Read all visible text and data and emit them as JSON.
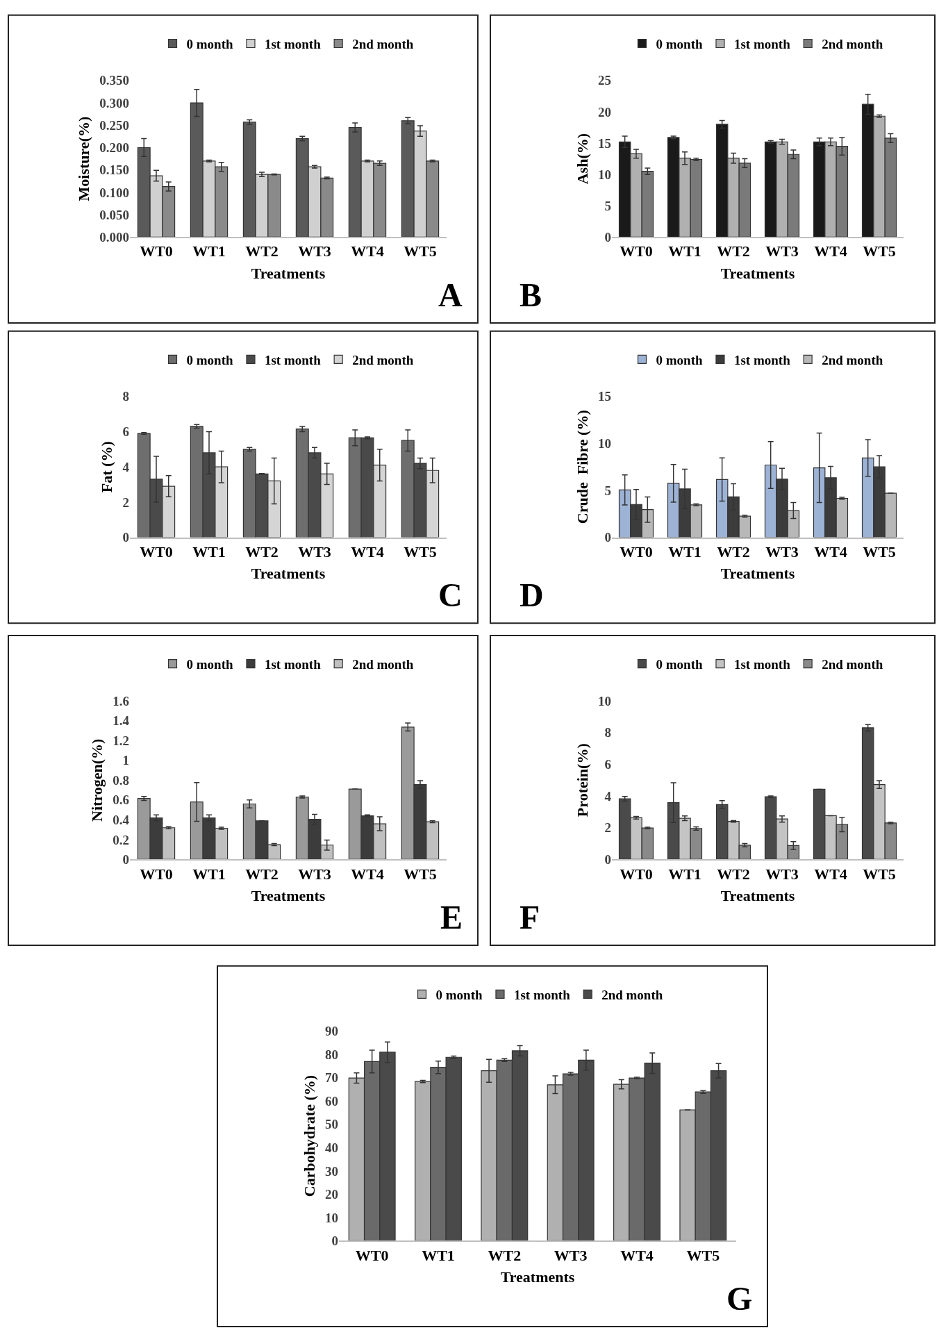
{
  "chart_data": [
    {
      "type": "bar",
      "ylabel": "Moisture(%)",
      "xlabel": "Treatments",
      "annotations": [
        "A"
      ],
      "legend": "top",
      "categories": [
        "WT0",
        "WT1",
        "WT2",
        "WT3",
        "WT4",
        "WT5"
      ],
      "ylim": [
        0,
        0.35
      ],
      "yticks": [
        {
          "value": 0,
          "label": "0.000"
        },
        {
          "value": 0.05,
          "label": "0.050"
        },
        {
          "value": 0.1,
          "label": "0.100"
        },
        {
          "value": 0.15,
          "label": "0.150"
        },
        {
          "value": 0.2,
          "label": "0.200"
        },
        {
          "value": 0.25,
          "label": "0.250"
        },
        {
          "value": 0.3,
          "label": "0.300"
        },
        {
          "value": 0.35,
          "label": "0.350"
        }
      ],
      "series": [
        {
          "name": "0 month",
          "color": "#5a5a5a",
          "values": [
            0.2,
            0.3,
            0.257,
            0.22,
            0.245,
            0.26
          ],
          "errors": [
            0.02,
            0.03,
            0.005,
            0.005,
            0.01,
            0.007
          ]
        },
        {
          "name": "1st month",
          "color": "#d0d0d0",
          "values": [
            0.137,
            0.17,
            0.14,
            0.157,
            0.17,
            0.237
          ],
          "errors": [
            0.012,
            0.002,
            0.005,
            0.003,
            0.002,
            0.012
          ]
        },
        {
          "name": "2nd month",
          "color": "#8a8a8a",
          "values": [
            0.113,
            0.157,
            0.14,
            0.132,
            0.165,
            0.17
          ],
          "errors": [
            0.01,
            0.01,
            0.001,
            0.002,
            0.005,
            0.002
          ]
        }
      ]
    },
    {
      "type": "bar",
      "ylabel": "Ash(%)",
      "xlabel": "Treatments",
      "annotations": [
        "B"
      ],
      "legend": "top",
      "categories": [
        "WT0",
        "WT1",
        "WT2",
        "WT3",
        "WT4",
        "WT5"
      ],
      "ylim": [
        0,
        25
      ],
      "yticks": [
        0,
        5,
        10,
        15,
        20,
        25
      ],
      "series": [
        {
          "name": "0 month",
          "color": "#1a1a1a",
          "values": [
            15.2,
            15.9,
            18,
            15.2,
            15.2,
            21.2
          ],
          "errors": [
            0.9,
            0.2,
            0.6,
            0.2,
            0.6,
            1.6
          ]
        },
        {
          "name": "1st month",
          "color": "#b0b0b0",
          "values": [
            13.3,
            12.6,
            12.6,
            15.2,
            15.2,
            19.3
          ],
          "errors": [
            0.7,
            1.0,
            0.8,
            0.4,
            0.6,
            0.2
          ]
        },
        {
          "name": "2nd month",
          "color": "#7a7a7a",
          "values": [
            10.5,
            12.4,
            11.8,
            13.2,
            14.5,
            15.8
          ],
          "errors": [
            0.5,
            0.2,
            0.7,
            0.7,
            1.4,
            0.7
          ]
        }
      ]
    },
    {
      "type": "bar",
      "ylabel": "Fat (%)",
      "xlabel": "Treatments",
      "annotations": [
        "C"
      ],
      "legend": "top",
      "categories": [
        "WT0",
        "WT1",
        "WT2",
        "WT3",
        "WT4",
        "WT5"
      ],
      "ylim": [
        0,
        8
      ],
      "yticks": [
        0,
        2,
        4,
        6,
        8
      ],
      "series": [
        {
          "name": "0 month",
          "color": "#6e6e6e",
          "values": [
            5.9,
            6.3,
            5.0,
            6.15,
            5.65,
            5.5
          ],
          "errors": [
            0.05,
            0.1,
            0.1,
            0.15,
            0.45,
            0.6
          ]
        },
        {
          "name": "1st month",
          "color": "#4a4a4a",
          "values": [
            3.3,
            4.8,
            3.6,
            4.8,
            5.65,
            4.2
          ],
          "errors": [
            1.3,
            1.2,
            0.02,
            0.3,
            0.05,
            0.3
          ]
        },
        {
          "name": "2nd month",
          "color": "#d5d5d5",
          "values": [
            2.9,
            4.0,
            3.2,
            3.6,
            4.1,
            3.8
          ],
          "errors": [
            0.6,
            0.9,
            1.3,
            0.6,
            0.9,
            0.7
          ]
        }
      ]
    },
    {
      "type": "bar",
      "ylabel": "Crude  Fibre (%)",
      "xlabel": "Treatments",
      "annotations": [
        "D"
      ],
      "legend": "top",
      "categories": [
        "WT0",
        "WT1",
        "WT2",
        "WT3",
        "WT4",
        "WT5"
      ],
      "ylim": [
        0,
        15
      ],
      "yticks": [
        0,
        5,
        10,
        15
      ],
      "series": [
        {
          "name": "0 month",
          "color": "#9db3d6",
          "values": [
            5.05,
            5.75,
            6.15,
            7.7,
            7.4,
            8.45
          ],
          "errors": [
            1.6,
            2.0,
            2.3,
            2.5,
            3.7,
            1.95
          ]
        },
        {
          "name": "1st month",
          "color": "#3c3c3c",
          "values": [
            3.5,
            5.15,
            4.3,
            6.2,
            6.35,
            7.5
          ],
          "errors": [
            1.6,
            2.1,
            1.4,
            1.15,
            1.2,
            1.2
          ]
        },
        {
          "name": "2nd month",
          "color": "#b8b8b8",
          "values": [
            2.95,
            3.45,
            2.25,
            2.85,
            4.15,
            4.7
          ],
          "errors": [
            1.35,
            0.1,
            0.1,
            0.85,
            0.1,
            null
          ]
        }
      ]
    },
    {
      "type": "bar",
      "ylabel": "Nitrogen(%)",
      "xlabel": "Treatments",
      "annotations": [
        "E"
      ],
      "legend": "top",
      "categories": [
        "WT0",
        "WT1",
        "WT2",
        "WT3",
        "WT4",
        "WT5"
      ],
      "ylim": [
        0,
        1.6
      ],
      "yticks": [
        0,
        0.2,
        0.4,
        0.6,
        0.8,
        1,
        1.2,
        1.4,
        1.6
      ],
      "series": [
        {
          "name": "0 month",
          "color": "#9a9a9a",
          "values": [
            0.615,
            0.58,
            0.56,
            0.63,
            0.71,
            1.335
          ],
          "errors": [
            0.02,
            0.195,
            0.04,
            0.01,
            null,
            0.04
          ]
        },
        {
          "name": "1st month",
          "color": "#3c3c3c",
          "values": [
            0.42,
            0.42,
            0.39,
            0.405,
            0.44,
            0.755
          ],
          "errors": [
            0.03,
            0.03,
            null,
            0.05,
            0.01,
            0.04
          ]
        },
        {
          "name": "2nd month",
          "color": "#c0c0c0",
          "values": [
            0.32,
            0.315,
            0.15,
            0.145,
            0.36,
            0.38
          ],
          "errors": [
            0.01,
            0.01,
            0.01,
            0.05,
            0.07,
            0.01
          ]
        }
      ]
    },
    {
      "type": "bar",
      "ylabel": "Protein(%)",
      "xlabel": "Treatments",
      "annotations": [
        "F"
      ],
      "legend": "top",
      "categories": [
        "WT0",
        "WT1",
        "WT2",
        "WT3",
        "WT4",
        "WT5"
      ],
      "ylim": [
        0,
        10
      ],
      "yticks": [
        0,
        2,
        4,
        6,
        8,
        10
      ],
      "series": [
        {
          "name": "0 month",
          "color": "#4a4a4a",
          "values": [
            3.82,
            3.58,
            3.46,
            3.95,
            4.42,
            8.3
          ],
          "errors": [
            0.15,
            1.25,
            0.25,
            0.05,
            null,
            0.2
          ]
        },
        {
          "name": "1st month",
          "color": "#c4c4c4",
          "values": [
            2.63,
            2.6,
            2.4,
            2.55,
            2.76,
            4.72
          ],
          "errors": [
            0.08,
            0.15,
            0.05,
            0.2,
            null,
            0.25
          ]
        },
        {
          "name": "2nd month",
          "color": "#8a8a8a",
          "values": [
            1.98,
            1.95,
            0.9,
            0.88,
            2.2,
            2.3
          ],
          "errors": [
            0.05,
            0.1,
            0.1,
            0.25,
            0.45,
            0.05
          ]
        }
      ]
    },
    {
      "type": "bar",
      "ylabel": "Carbohydrate (%)",
      "xlabel": "Treatments",
      "annotations": [
        "G"
      ],
      "legend": "top",
      "categories": [
        "WT0",
        "WT1",
        "WT2",
        "WT3",
        "WT4",
        "WT5"
      ],
      "ylim": [
        0,
        90
      ],
      "yticks": [
        0,
        10,
        20,
        30,
        40,
        50,
        60,
        70,
        80,
        90
      ],
      "series": [
        {
          "name": "0 month",
          "color": "#b0b0b0",
          "values": [
            69.9,
            68.4,
            73,
            67,
            67.2,
            56.2
          ],
          "errors": [
            2.2,
            0.5,
            4.9,
            3.8,
            2,
            null
          ]
        },
        {
          "name": "1st month",
          "color": "#6a6a6a",
          "values": [
            77,
            74.5,
            77.6,
            71.7,
            69.9,
            63.9
          ],
          "errors": [
            4.9,
            2.7,
            0.6,
            0.6,
            0.3,
            0.6
          ]
        },
        {
          "name": "2nd month",
          "color": "#4a4a4a",
          "values": [
            81,
            78.8,
            81.6,
            77.6,
            76.3,
            73
          ],
          "errors": [
            4.4,
            0.5,
            2.2,
            4.3,
            4.4,
            3.1
          ]
        }
      ]
    }
  ]
}
